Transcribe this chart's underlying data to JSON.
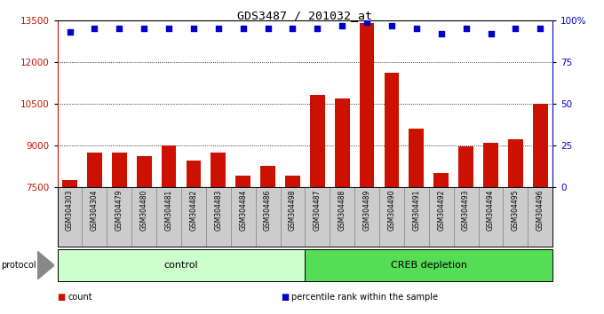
{
  "title": "GDS3487 / 201032_at",
  "samples": [
    "GSM304303",
    "GSM304304",
    "GSM304479",
    "GSM304480",
    "GSM304481",
    "GSM304482",
    "GSM304483",
    "GSM304484",
    "GSM304486",
    "GSM304498",
    "GSM304487",
    "GSM304488",
    "GSM304489",
    "GSM304490",
    "GSM304491",
    "GSM304492",
    "GSM304493",
    "GSM304494",
    "GSM304495",
    "GSM304496"
  ],
  "counts": [
    7750,
    8750,
    8750,
    8600,
    9000,
    8450,
    8750,
    7900,
    8250,
    7900,
    10800,
    10700,
    13400,
    11600,
    9600,
    8000,
    8950,
    9100,
    9200,
    10500
  ],
  "percentile_ranks": [
    93,
    95,
    95,
    95,
    95,
    95,
    95,
    95,
    95,
    95,
    95,
    97,
    99,
    97,
    95,
    92,
    95,
    92,
    95,
    95
  ],
  "protocol_groups": [
    {
      "label": "control",
      "start": 0,
      "end": 10,
      "color": "#ccffcc"
    },
    {
      "label": "CREB depletion",
      "start": 10,
      "end": 20,
      "color": "#55dd55"
    }
  ],
  "ylim_left": [
    7500,
    13500
  ],
  "ylim_right": [
    0,
    100
  ],
  "yticks_left": [
    7500,
    9000,
    10500,
    12000,
    13500
  ],
  "yticks_right": [
    0,
    25,
    50,
    75,
    100
  ],
  "bar_color": "#cc1100",
  "dot_color": "#0000cc",
  "cell_color": "#cccccc",
  "plot_bg_color": "#ffffff",
  "legend_items": [
    {
      "label": "count",
      "color": "#cc1100"
    },
    {
      "label": "percentile rank within the sample",
      "color": "#0000cc"
    }
  ]
}
